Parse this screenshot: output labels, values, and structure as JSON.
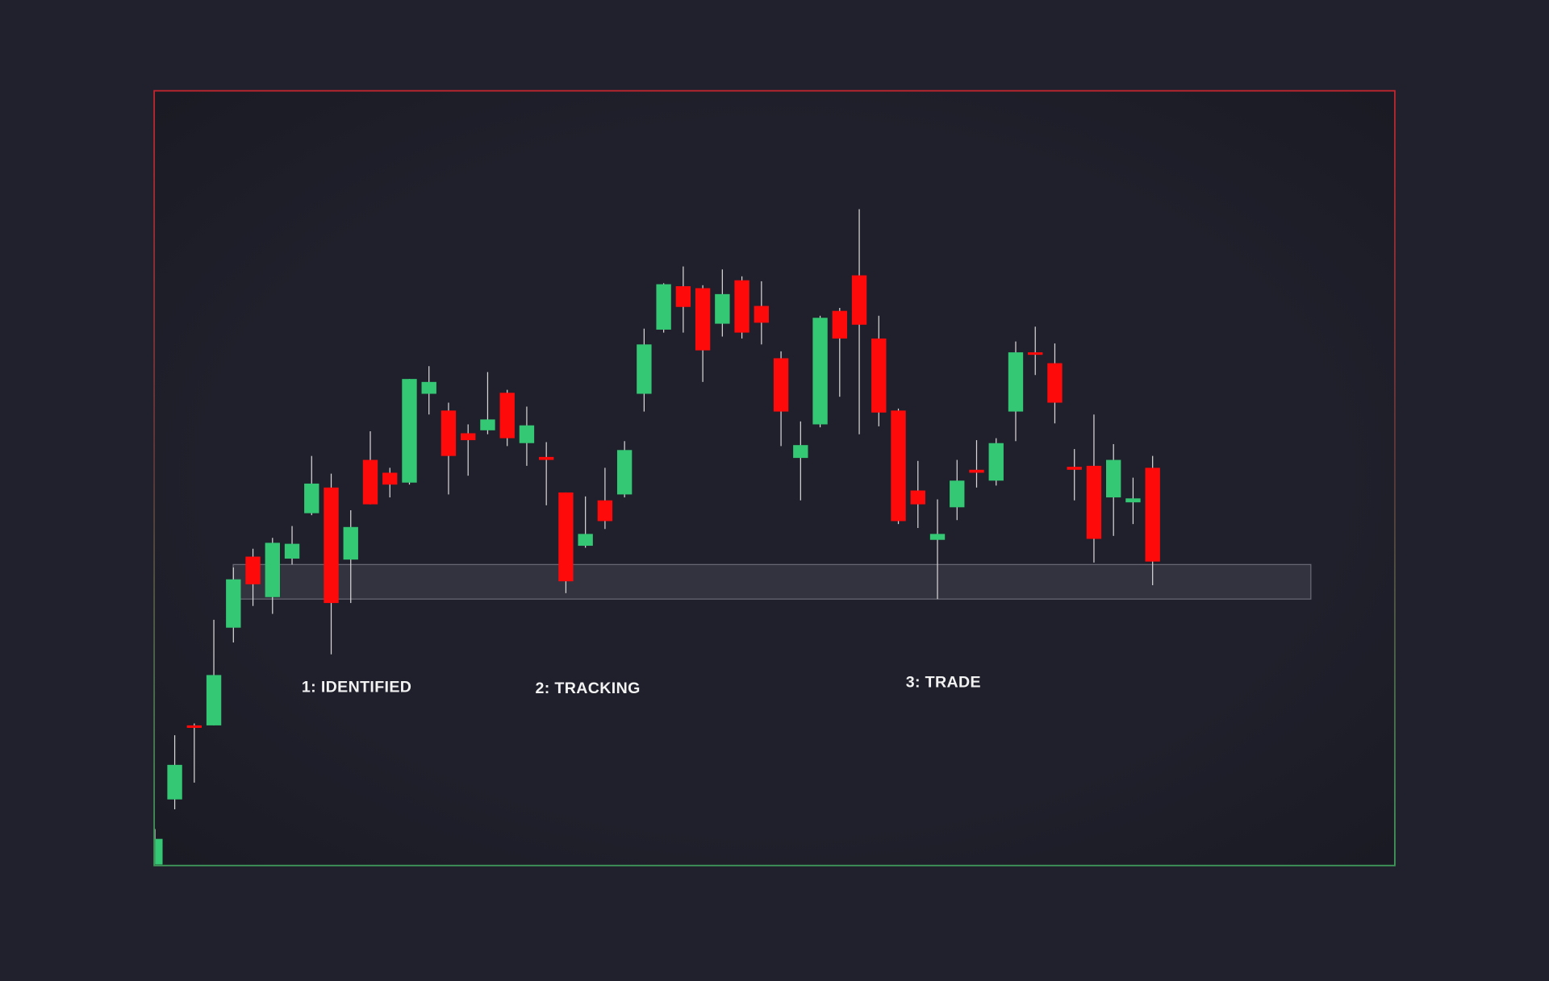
{
  "chart_data": {
    "type": "candlestick",
    "categories": [
      null,
      null,
      null,
      null,
      null,
      null,
      null,
      null,
      null,
      null,
      null,
      null,
      null,
      null,
      null,
      null,
      null,
      null,
      null,
      null,
      null,
      null,
      null,
      null,
      null,
      null,
      null,
      null,
      null,
      null,
      null,
      null,
      null,
      null,
      null,
      null,
      null,
      null,
      null,
      null,
      null,
      null,
      null,
      null,
      null,
      null,
      null,
      null,
      null,
      null,
      null,
      null
    ],
    "open": [
      23,
      90,
      165,
      165,
      264,
      336,
      295,
      334,
      380,
      406,
      333,
      434,
      421,
      411,
      501,
      484,
      461,
      464,
      502,
      451,
      437,
      401,
      347,
      393,
      399,
      501,
      566,
      610,
      608,
      572,
      616,
      590,
      537,
      436,
      470,
      585,
      621,
      557,
      484,
      403,
      353,
      386,
      424,
      413,
      483,
      543,
      532,
      427,
      428,
      396,
      391,
      426
    ],
    "high": [
      60,
      155,
      167,
      272,
      325,
      344,
      355,
      367,
      438,
      420,
      383,
      463,
      426,
      516,
      529,
      492,
      470,
      523,
      505,
      488,
      452,
      401,
      397,
      426,
      453,
      567,
      613,
      630,
      611,
      627,
      620,
      615,
      544,
      473,
      580,
      588,
      688,
      580,
      486,
      433,
      394,
      434,
      454,
      456,
      554,
      569,
      552,
      445,
      480,
      450,
      416,
      438
    ],
    "low": [
      23,
      80,
      107,
      165,
      249,
      286,
      278,
      328,
      378,
      237,
      289,
      389,
      396,
      409,
      480,
      399,
      418,
      460,
      448,
      428,
      388,
      299,
      345,
      364,
      396,
      483,
      563,
      563,
      513,
      559,
      557,
      551,
      448,
      393,
      467,
      498,
      460,
      468,
      369,
      365,
      293,
      373,
      406,
      408,
      453,
      520,
      471,
      393,
      330,
      357,
      369,
      307
    ],
    "close": [
      50,
      125,
      163,
      216,
      313,
      308,
      350,
      349,
      410,
      289,
      366,
      389,
      409,
      516,
      513,
      438,
      454,
      475,
      456,
      469,
      434,
      311,
      359,
      372,
      444,
      551,
      612,
      589,
      545,
      602,
      563,
      573,
      483,
      449,
      578,
      557,
      571,
      482,
      372,
      389,
      359,
      413,
      421,
      451,
      543,
      542,
      492,
      424,
      354,
      434,
      395,
      331
    ],
    "up_color": "#34c874",
    "down_color": "#ff0a0a",
    "zone": {
      "low": 293,
      "high": 328,
      "color": "#373744"
    },
    "ylim": [
      23,
      808
    ],
    "annotations": [
      "1: IDENTIFIED",
      "2: TRACKING",
      "3: TRADE"
    ]
  }
}
